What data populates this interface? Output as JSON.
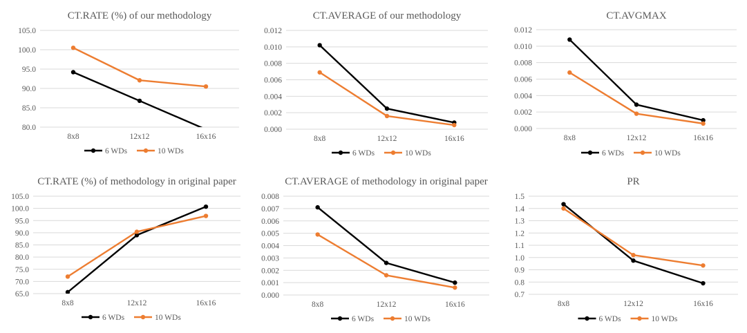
{
  "chart_data": [
    {
      "type": "line",
      "title": "CT.RATE (%) of our methodology",
      "categories": [
        "8x8",
        "12x12",
        "16x16"
      ],
      "yticks": [
        "80.0",
        "85.0",
        "90.0",
        "95.0",
        "100.0",
        "105.0"
      ],
      "ylim": [
        80,
        105
      ],
      "series": [
        {
          "name": "6 WDs",
          "color": "#000000",
          "values": [
            94.2,
            86.8,
            79.4
          ]
        },
        {
          "name": "10 WDs",
          "color": "#ED7D31",
          "values": [
            100.5,
            92.1,
            90.5
          ]
        }
      ]
    },
    {
      "type": "line",
      "title": "CT.AVERAGE of our methodology",
      "categories": [
        "8x8",
        "12x12",
        "16x16"
      ],
      "yticks": [
        "0.000",
        "0.002",
        "0.004",
        "0.006",
        "0.008",
        "0.010",
        "0.012"
      ],
      "ylim": [
        0,
        0.012
      ],
      "series": [
        {
          "name": "6 WDs",
          "color": "#000000",
          "values": [
            0.0102,
            0.0025,
            0.0008
          ]
        },
        {
          "name": "10 WDs",
          "color": "#ED7D31",
          "values": [
            0.0069,
            0.0016,
            0.0005
          ]
        }
      ]
    },
    {
      "type": "line",
      "title": "CT.AVGMAX",
      "categories": [
        "8x8",
        "12x12",
        "16x16"
      ],
      "yticks": [
        "0.000",
        "0.002",
        "0.004",
        "0.006",
        "0.008",
        "0.010",
        "0.012"
      ],
      "ylim": [
        0,
        0.012
      ],
      "series": [
        {
          "name": "6 WDs",
          "color": "#000000",
          "values": [
            0.0108,
            0.0029,
            0.001
          ]
        },
        {
          "name": "10 WDs",
          "color": "#ED7D31",
          "values": [
            0.0068,
            0.0018,
            0.0006
          ]
        }
      ]
    },
    {
      "type": "line",
      "title": "CT.RATE (%) of methodology in original paper",
      "categories": [
        "8x8",
        "12x12",
        "16x16"
      ],
      "yticks": [
        "65.0",
        "70.0",
        "75.0",
        "80.0",
        "85.0",
        "90.0",
        "95.0",
        "100.0",
        "105.0"
      ],
      "ylim": [
        65,
        105
      ],
      "series": [
        {
          "name": "6 WDs",
          "color": "#000000",
          "values": [
            65.6,
            89.0,
            100.7
          ]
        },
        {
          "name": "10 WDs",
          "color": "#ED7D31",
          "values": [
            72.0,
            90.4,
            96.9
          ]
        }
      ]
    },
    {
      "type": "line",
      "title": "CT.AVERAGE of methodology in original paper",
      "categories": [
        "8x8",
        "12x12",
        "16x16"
      ],
      "yticks": [
        "0.000",
        "0.001",
        "0.002",
        "0.003",
        "0.004",
        "0.005",
        "0.006",
        "0.007",
        "0.008"
      ],
      "ylim": [
        0,
        0.008
      ],
      "series": [
        {
          "name": "6 WDs",
          "color": "#000000",
          "values": [
            0.0071,
            0.0026,
            0.001
          ]
        },
        {
          "name": "10 WDs",
          "color": "#ED7D31",
          "values": [
            0.0049,
            0.0016,
            0.0006
          ]
        }
      ]
    },
    {
      "type": "line",
      "title": "PR",
      "categories": [
        "8x8",
        "12x12",
        "16x16"
      ],
      "yticks": [
        "0.7",
        "0.8",
        "0.9",
        "1.0",
        "1.1",
        "1.2",
        "1.3",
        "1.4",
        "1.5"
      ],
      "ylim": [
        0.7,
        1.5
      ],
      "series": [
        {
          "name": "6 WDs",
          "color": "#000000",
          "values": [
            1.435,
            0.975,
            0.79
          ]
        },
        {
          "name": "10 WDs",
          "color": "#ED7D31",
          "values": [
            1.4,
            1.02,
            0.935
          ]
        }
      ]
    }
  ]
}
